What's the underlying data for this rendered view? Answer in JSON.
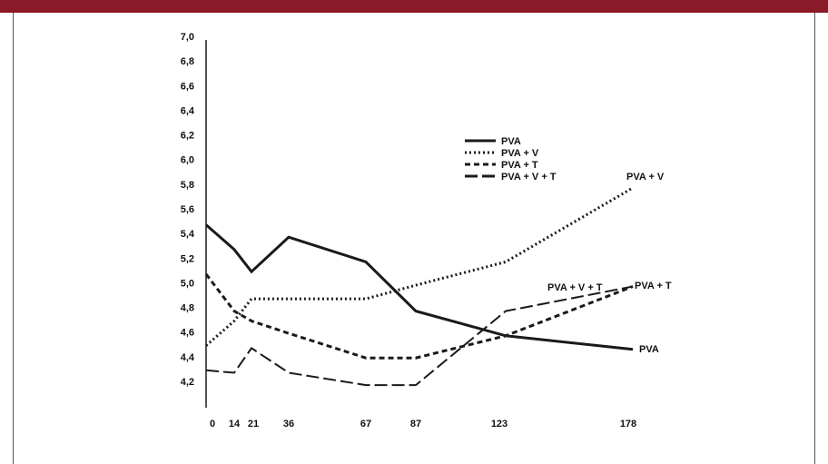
{
  "colors": {
    "top_bar": "#8b1a28",
    "line": "#1a1a1a"
  },
  "chart_data": {
    "type": "line",
    "title": "",
    "xlabel": "",
    "ylabel": "",
    "x": [
      0,
      14,
      21,
      36,
      67,
      87,
      123,
      178
    ],
    "x_tick_labels": [
      "0",
      "14",
      "21",
      "36",
      "67",
      "87",
      "123",
      "178"
    ],
    "y_tick_values": [
      4.2,
      4.4,
      4.6,
      4.8,
      5.0,
      5.2,
      5.4,
      5.6,
      5.8,
      6.0,
      6.2,
      6.4,
      6.6,
      6.8,
      7.0
    ],
    "y_tick_labels": [
      "4,2",
      "4,4",
      "4,6",
      "4,8",
      "5,0",
      "5,2",
      "5,4",
      "5,6",
      "5,8",
      "6,0",
      "6,2",
      "6,4",
      "6,6",
      "6,8",
      "7,0"
    ],
    "ylim": [
      3.9,
      7.0
    ],
    "grid": false,
    "legend_position": "upper-right",
    "series": [
      {
        "name": "PVA",
        "style": "solid",
        "end_label": "PVA",
        "points": [
          [
            0,
            5.47
          ],
          [
            14,
            5.27
          ],
          [
            21,
            5.09
          ],
          [
            36,
            5.37
          ],
          [
            67,
            5.17
          ],
          [
            87,
            4.77
          ],
          [
            123,
            4.57
          ],
          [
            178,
            4.46
          ]
        ]
      },
      {
        "name": "PVA + V",
        "style": "dotted",
        "end_label": "PVA + V",
        "points": [
          [
            0,
            4.49
          ],
          [
            14,
            4.69
          ],
          [
            21,
            4.87
          ],
          [
            67,
            4.87
          ],
          [
            87,
            4.98
          ],
          [
            123,
            5.17
          ],
          [
            178,
            5.77
          ]
        ]
      },
      {
        "name": "PVA + T",
        "style": "short-dash",
        "end_label": "PVA + T",
        "points": [
          [
            0,
            5.07
          ],
          [
            14,
            4.77
          ],
          [
            21,
            4.69
          ],
          [
            36,
            4.59
          ],
          [
            67,
            4.39
          ],
          [
            87,
            4.39
          ],
          [
            123,
            4.57
          ],
          [
            178,
            4.97
          ]
        ]
      },
      {
        "name": "PVA + V + T",
        "style": "long-dash",
        "end_label": "PVA + V + T",
        "points": [
          [
            0,
            4.29
          ],
          [
            14,
            4.27
          ],
          [
            21,
            4.47
          ],
          [
            36,
            4.27
          ],
          [
            67,
            4.17
          ],
          [
            87,
            4.17
          ],
          [
            123,
            4.77
          ],
          [
            178,
            4.97
          ]
        ]
      }
    ]
  }
}
